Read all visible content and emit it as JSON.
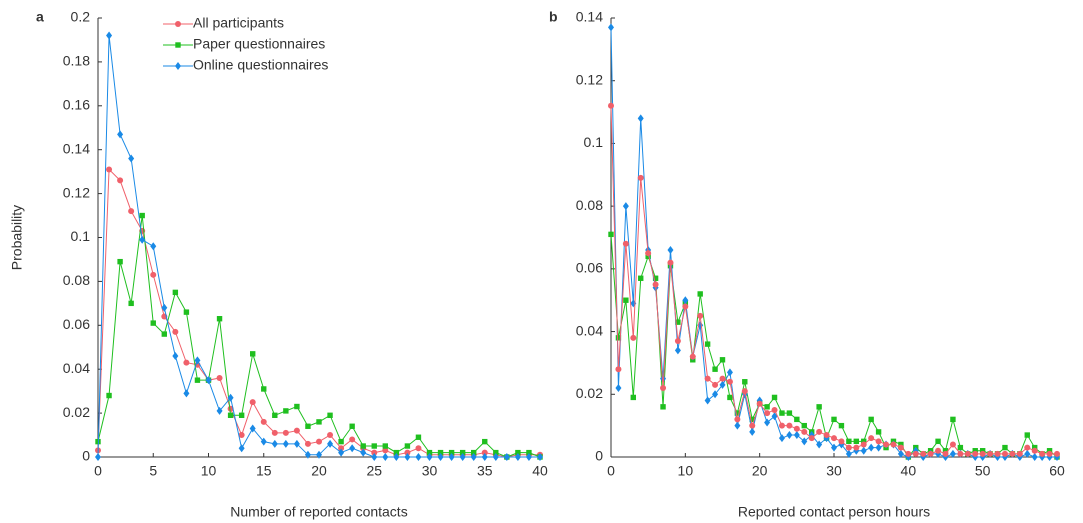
{
  "chart_data": [
    {
      "type": "line",
      "panel_label": "a",
      "xlabel": "Number of reported contacts",
      "ylabel": "Probability",
      "xlim": [
        0,
        40
      ],
      "ylim": [
        0,
        0.2
      ],
      "xticks": [
        0,
        5,
        10,
        15,
        20,
        25,
        30,
        35,
        40
      ],
      "yticks": [
        0,
        0.02,
        0.04,
        0.06,
        0.08,
        0.1,
        0.12,
        0.14,
        0.16,
        0.18,
        0.2
      ],
      "legend": "upper center",
      "x": [
        0,
        1,
        2,
        3,
        4,
        5,
        6,
        7,
        8,
        9,
        10,
        11,
        12,
        13,
        14,
        15,
        16,
        17,
        18,
        19,
        20,
        21,
        22,
        23,
        24,
        25,
        26,
        27,
        28,
        29,
        30,
        31,
        32,
        33,
        34,
        35,
        36,
        37,
        38,
        39,
        40
      ],
      "series": [
        {
          "name": "All participants",
          "color": "#f0606a",
          "marker": "circle",
          "values": [
            0.003,
            0.131,
            0.126,
            0.112,
            0.103,
            0.083,
            0.064,
            0.057,
            0.043,
            0.042,
            0.035,
            0.036,
            0.022,
            0.01,
            0.025,
            0.016,
            0.011,
            0.011,
            0.012,
            0.006,
            0.007,
            0.01,
            0.004,
            0.008,
            0.004,
            0.002,
            0.003,
            0.001,
            0.002,
            0.004,
            0.001,
            0.001,
            0.001,
            0.001,
            0.001,
            0.002,
            0.001,
            0,
            0.001,
            0.001,
            0.001
          ]
        },
        {
          "name": "Paper questionnaires",
          "color": "#1fbf1f",
          "marker": "square",
          "values": [
            0.007,
            0.028,
            0.089,
            0.07,
            0.11,
            0.061,
            0.056,
            0.075,
            0.066,
            0.035,
            0.035,
            0.063,
            0.019,
            0.019,
            0.047,
            0.031,
            0.019,
            0.021,
            0.023,
            0.014,
            0.016,
            0.019,
            0.007,
            0.014,
            0.005,
            0.005,
            0.005,
            0.002,
            0.005,
            0.009,
            0.002,
            0.002,
            0.002,
            0.002,
            0.002,
            0.007,
            0.002,
            0,
            0.002,
            0.002,
            0
          ]
        },
        {
          "name": "Online questionnaires",
          "color": "#1a8ae6",
          "marker": "diamond",
          "values": [
            0,
            0.192,
            0.147,
            0.136,
            0.099,
            0.096,
            0.068,
            0.046,
            0.029,
            0.044,
            0.035,
            0.021,
            0.027,
            0.004,
            0.013,
            0.007,
            0.006,
            0.006,
            0.006,
            0.001,
            0.001,
            0.006,
            0.002,
            0.004,
            0.002,
            0,
            0,
            0,
            0,
            0,
            0,
            0,
            0,
            0,
            0,
            0,
            0,
            0,
            0,
            0,
            0
          ]
        }
      ]
    },
    {
      "type": "line",
      "panel_label": "b",
      "xlabel": "Reported contact person hours",
      "xlim": [
        0,
        60
      ],
      "ylim": [
        0,
        0.14
      ],
      "xticks": [
        0,
        10,
        20,
        30,
        40,
        50,
        60
      ],
      "yticks": [
        0,
        0.02,
        0.04,
        0.06,
        0.08,
        0.1,
        0.12,
        0.14
      ],
      "x": [
        0,
        1,
        2,
        3,
        4,
        5,
        6,
        7,
        8,
        9,
        10,
        11,
        12,
        13,
        14,
        15,
        16,
        17,
        18,
        19,
        20,
        21,
        22,
        23,
        24,
        25,
        26,
        27,
        28,
        29,
        30,
        31,
        32,
        33,
        34,
        35,
        36,
        37,
        38,
        39,
        40,
        41,
        42,
        43,
        44,
        45,
        46,
        47,
        48,
        49,
        50,
        51,
        52,
        53,
        54,
        55,
        56,
        57,
        58,
        59,
        60
      ],
      "series": [
        {
          "color": "#1fbf1f",
          "marker": "square",
          "values": [
            0.071,
            0.038,
            0.05,
            0.019,
            0.057,
            0.064,
            0.057,
            0.016,
            0.061,
            0.043,
            0.049,
            0.031,
            0.052,
            0.036,
            0.028,
            0.031,
            0.019,
            0.014,
            0.024,
            0.012,
            0.017,
            0.016,
            0.019,
            0.014,
            0.014,
            0.012,
            0.01,
            0.008,
            0.016,
            0.006,
            0.012,
            0.01,
            0.005,
            0.005,
            0.005,
            0.012,
            0.008,
            0.003,
            0.005,
            0.004,
            0,
            0.003,
            0.001,
            0.002,
            0.005,
            0.002,
            0.012,
            0.003,
            0.001,
            0.002,
            0.002,
            0.001,
            0.001,
            0.003,
            0.001,
            0.001,
            0.007,
            0.003,
            0.001,
            0.002,
            0
          ]
        },
        {
          "color": "#1a8ae6",
          "marker": "diamond",
          "values": [
            0.137,
            0.022,
            0.08,
            0.049,
            0.108,
            0.066,
            0.054,
            0.025,
            0.066,
            0.034,
            0.05,
            0.032,
            0.042,
            0.018,
            0.02,
            0.023,
            0.027,
            0.01,
            0.02,
            0.008,
            0.018,
            0.011,
            0.013,
            0.006,
            0.007,
            0.007,
            0.005,
            0.007,
            0.004,
            0.006,
            0.003,
            0.004,
            0.001,
            0.002,
            0.002,
            0.003,
            0.003,
            0.004,
            0.004,
            0.001,
            0,
            0.002,
            0,
            0.001,
            0.001,
            0,
            0.001,
            0.001,
            0.001,
            0,
            0,
            0.001,
            0,
            0,
            0.001,
            0,
            0.001,
            0,
            0,
            0,
            0
          ]
        },
        {
          "color": "#f0606a",
          "marker": "circle",
          "values": [
            0.112,
            0.028,
            0.068,
            0.038,
            0.089,
            0.065,
            0.055,
            0.022,
            0.062,
            0.037,
            0.048,
            0.032,
            0.045,
            0.025,
            0.023,
            0.025,
            0.024,
            0.012,
            0.021,
            0.01,
            0.017,
            0.014,
            0.015,
            0.01,
            0.01,
            0.009,
            0.008,
            0.006,
            0.008,
            0.007,
            0.006,
            0.005,
            0.003,
            0.003,
            0.004,
            0.006,
            0.005,
            0.004,
            0.004,
            0.003,
            0.001,
            0.001,
            0.001,
            0.001,
            0.002,
            0.001,
            0.004,
            0.001,
            0.001,
            0.001,
            0.001,
            0.001,
            0.001,
            0.001,
            0.001,
            0.001,
            0.003,
            0.002,
            0.001,
            0.001,
            0.001
          ]
        }
      ]
    }
  ]
}
